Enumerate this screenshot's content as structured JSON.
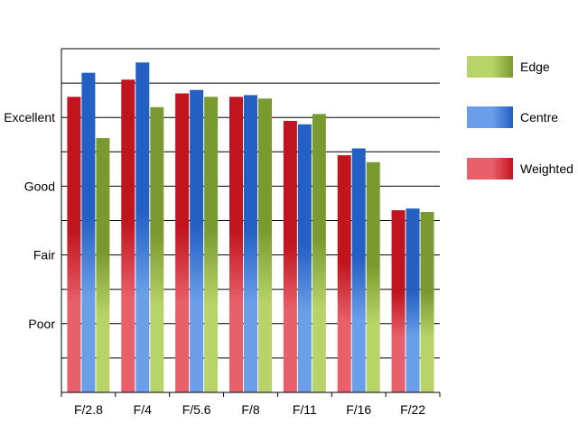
{
  "chart_data": {
    "type": "bar",
    "title": "",
    "xlabel": "",
    "ylabel": "",
    "categories": [
      "F/2.8",
      "F/4",
      "F/5.6",
      "F/8",
      "F/11",
      "F/16",
      "F/22"
    ],
    "y_tick_labels": [
      {
        "value": 2,
        "label": "Poor"
      },
      {
        "value": 4,
        "label": "Fair"
      },
      {
        "value": 6,
        "label": "Good"
      },
      {
        "value": 8,
        "label": "Excellent"
      }
    ],
    "ylim": [
      0,
      10
    ],
    "grid": true,
    "legend_position": "right",
    "series": [
      {
        "name": "Weighted",
        "color": "#c0141e",
        "light": "#e8606a",
        "values": [
          8.6,
          9.1,
          8.7,
          8.6,
          7.9,
          6.9,
          5.3
        ]
      },
      {
        "name": "Centre",
        "color": "#2460c4",
        "light": "#6a9ee8",
        "values": [
          9.3,
          9.6,
          8.8,
          8.65,
          7.8,
          7.1,
          5.35
        ]
      },
      {
        "name": "Edge",
        "color": "#7a9a30",
        "light": "#b8d468",
        "values": [
          7.4,
          8.3,
          8.6,
          8.55,
          8.1,
          6.7,
          5.25
        ]
      }
    ],
    "legend_order": [
      "Edge",
      "Centre",
      "Weighted"
    ]
  }
}
